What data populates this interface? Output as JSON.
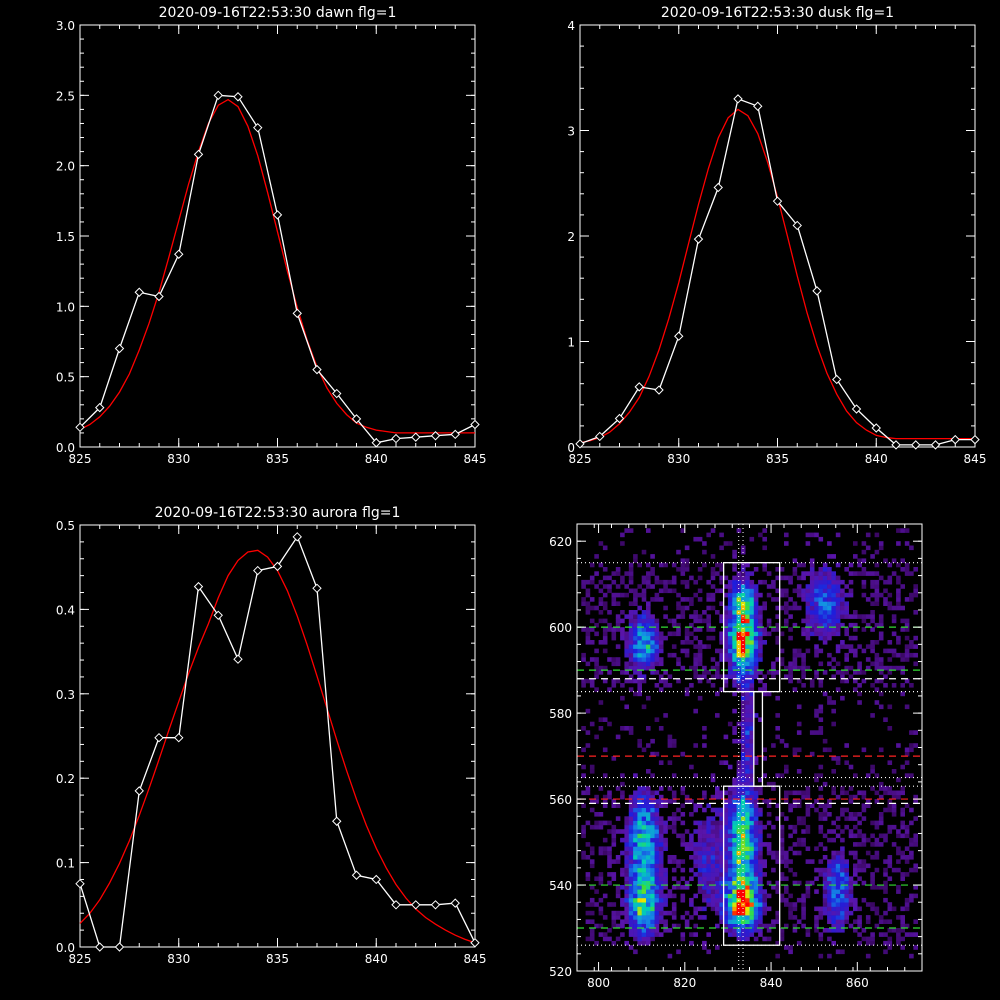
{
  "chart_data": [
    {
      "type": "line",
      "title": "2020-09-16T22:53:30 dawn flg=1",
      "xlim": [
        825,
        845
      ],
      "ylim": [
        0,
        3
      ],
      "xticks": [
        825,
        830,
        835,
        840,
        845
      ],
      "xtick_labels": [
        "825",
        "830",
        "835",
        "840",
        "845"
      ],
      "yticks": [
        0,
        0.5,
        1,
        1.5,
        2,
        2.5,
        3
      ],
      "ytick_labels": [
        "0.0",
        "0.5",
        "1.0",
        "1.5",
        "2.0",
        "2.5",
        "3.0"
      ],
      "series": [
        {
          "x": [
            825,
            826,
            827,
            828,
            829,
            830,
            831,
            832,
            833,
            834,
            835,
            836,
            837,
            838,
            839,
            840,
            841,
            842,
            843,
            844,
            845
          ],
          "y": [
            0.14,
            0.28,
            0.7,
            1.1,
            1.07,
            1.37,
            2.08,
            2.5,
            2.49,
            2.27,
            1.65,
            0.95,
            0.55,
            0.38,
            0.2,
            0.03,
            0.06,
            0.07,
            0.08,
            0.09,
            0.16
          ],
          "color": "#ffffff",
          "markers": "diamond"
        },
        {
          "x": [
            825,
            825.5,
            826,
            826.5,
            827,
            827.5,
            828,
            828.5,
            829,
            829.5,
            830,
            830.5,
            831,
            831.5,
            832,
            832.5,
            833,
            833.5,
            834,
            834.5,
            835,
            835.5,
            836,
            836.5,
            837,
            837.5,
            838,
            838.5,
            839,
            839.5,
            840,
            840.5,
            841,
            841.5,
            842,
            842.5,
            843,
            843.5,
            844,
            844.5,
            845
          ],
          "y": [
            0.125,
            0.16,
            0.215,
            0.29,
            0.39,
            0.52,
            0.69,
            0.88,
            1.1,
            1.35,
            1.61,
            1.87,
            2.1,
            2.3,
            2.43,
            2.47,
            2.42,
            2.28,
            2.07,
            1.81,
            1.53,
            1.25,
            0.99,
            0.76,
            0.57,
            0.42,
            0.31,
            0.23,
            0.17,
            0.14,
            0.12,
            0.11,
            0.1,
            0.1,
            0.1,
            0.1,
            0.1,
            0.1,
            0.1,
            0.1,
            0.1
          ],
          "color": "#ff0000",
          "markers": "none"
        }
      ]
    },
    {
      "type": "line",
      "title": "2020-09-16T22:53:30 dusk flg=1",
      "xlim": [
        825,
        845
      ],
      "ylim": [
        0,
        4
      ],
      "xticks": [
        825,
        830,
        835,
        840,
        845
      ],
      "xtick_labels": [
        "825",
        "830",
        "835",
        "840",
        "845"
      ],
      "yticks": [
        0,
        1,
        2,
        3,
        4
      ],
      "ytick_labels": [
        "0",
        "1",
        "2",
        "3",
        "4"
      ],
      "series": [
        {
          "x": [
            825,
            826,
            827,
            828,
            829,
            830,
            831,
            832,
            833,
            834,
            835,
            836,
            837,
            838,
            839,
            840,
            841,
            842,
            843,
            844,
            845
          ],
          "y": [
            0.03,
            0.1,
            0.27,
            0.57,
            0.54,
            1.05,
            1.97,
            2.46,
            3.3,
            3.23,
            2.33,
            2.1,
            1.48,
            0.64,
            0.36,
            0.18,
            0.02,
            0.02,
            0.02,
            0.07,
            0.07
          ],
          "color": "#ffffff",
          "markers": "diamond"
        },
        {
          "x": [
            825,
            825.5,
            826,
            826.5,
            827,
            827.5,
            828,
            828.5,
            829,
            829.5,
            830,
            830.5,
            831,
            831.5,
            832,
            832.5,
            833,
            833.5,
            834,
            834.5,
            835,
            835.5,
            836,
            836.5,
            837,
            837.5,
            838,
            838.5,
            839,
            839.5,
            840,
            840.5,
            841,
            841.5,
            842,
            842.5,
            843,
            843.5,
            844,
            844.5,
            845
          ],
          "y": [
            0.04,
            0.06,
            0.09,
            0.14,
            0.22,
            0.33,
            0.47,
            0.67,
            0.92,
            1.22,
            1.56,
            1.93,
            2.3,
            2.64,
            2.93,
            3.12,
            3.2,
            3.14,
            2.97,
            2.7,
            2.37,
            2.0,
            1.62,
            1.27,
            0.96,
            0.7,
            0.5,
            0.34,
            0.23,
            0.16,
            0.11,
            0.09,
            0.08,
            0.08,
            0.08,
            0.08,
            0.08,
            0.08,
            0.08,
            0.08,
            0.08
          ],
          "color": "#ff0000",
          "markers": "none"
        }
      ]
    },
    {
      "type": "line",
      "title": "2020-09-16T22:53:30 aurora flg=1",
      "xlim": [
        825,
        845
      ],
      "ylim": [
        0,
        0.5
      ],
      "xticks": [
        825,
        830,
        835,
        840,
        845
      ],
      "xtick_labels": [
        "825",
        "830",
        "835",
        "840",
        "845"
      ],
      "yticks": [
        0,
        0.1,
        0.2,
        0.3,
        0.4,
        0.5
      ],
      "ytick_labels": [
        "0.0",
        "0.1",
        "0.2",
        "0.3",
        "0.4",
        "0.5"
      ],
      "series": [
        {
          "x": [
            825,
            826,
            827,
            828,
            829,
            830,
            831,
            832,
            833,
            834,
            835,
            836,
            837,
            838,
            839,
            840,
            841,
            842,
            843,
            844,
            845
          ],
          "y": [
            0.075,
            0,
            0,
            0.185,
            0.248,
            0.248,
            0.427,
            0.393,
            0.341,
            0.446,
            0.451,
            0.486,
            0.425,
            0.149,
            0.085,
            0.08,
            0.05,
            0.05,
            0.05,
            0.052,
            0.005
          ],
          "color": "#ffffff",
          "markers": "diamond"
        },
        {
          "x": [
            825,
            825.5,
            826,
            826.5,
            827,
            827.5,
            828,
            828.5,
            829,
            829.5,
            830,
            830.5,
            831,
            831.5,
            832,
            832.5,
            833,
            833.5,
            834,
            834.5,
            835,
            835.5,
            836,
            836.5,
            837,
            837.5,
            838,
            838.5,
            839,
            839.5,
            840,
            840.5,
            841,
            841.5,
            842,
            842.5,
            843,
            843.5,
            844,
            844.5,
            845
          ],
          "y": [
            0.028,
            0.04,
            0.056,
            0.076,
            0.099,
            0.126,
            0.156,
            0.188,
            0.222,
            0.257,
            0.291,
            0.324,
            0.355,
            0.383,
            0.414,
            0.44,
            0.458,
            0.468,
            0.47,
            0.462,
            0.446,
            0.422,
            0.392,
            0.358,
            0.321,
            0.283,
            0.245,
            0.209,
            0.175,
            0.144,
            0.117,
            0.094,
            0.074,
            0.058,
            0.045,
            0.035,
            0.027,
            0.02,
            0.014,
            0.009,
            0.005
          ],
          "color": "#ff0000",
          "markers": "none"
        }
      ]
    },
    {
      "type": "heatmap",
      "title": "",
      "xlim": [
        795,
        875
      ],
      "ylim": [
        520,
        624
      ],
      "xticks": [
        800,
        820,
        840,
        860
      ],
      "xtick_labels": [
        "800",
        "820",
        "840",
        "860"
      ],
      "yticks": [
        520,
        540,
        560,
        580,
        600,
        620
      ],
      "ytick_labels": [
        "520",
        "540",
        "560",
        "580",
        "600",
        "620"
      ],
      "boxes": [
        {
          "x0": 829,
          "x1": 842,
          "y0": 585,
          "y1": 615
        },
        {
          "x0": 829,
          "x1": 842,
          "y0": 526,
          "y1": 563
        },
        {
          "x0": 836,
          "x1": 838,
          "y0": 563,
          "y1": 585
        }
      ],
      "hlines": [
        {
          "y": 615,
          "color": "#ffffff",
          "style": "dotted"
        },
        {
          "y": 600,
          "color": "#33dd33",
          "style": "dashed"
        },
        {
          "y": 590,
          "color": "#33dd33",
          "style": "dashed"
        },
        {
          "y": 588,
          "color": "#ffffff",
          "style": "dashed"
        },
        {
          "y": 585,
          "color": "#ffffff",
          "style": "dotted"
        },
        {
          "y": 570,
          "color": "#ff2222",
          "style": "dashed"
        },
        {
          "y": 565,
          "color": "#ffffff",
          "style": "dotted"
        },
        {
          "y": 563,
          "color": "#ffffff",
          "style": "dotted"
        },
        {
          "y": 560,
          "color": "#ff2222",
          "style": "dashed"
        },
        {
          "y": 559,
          "color": "#ffffff",
          "style": "dashed"
        },
        {
          "y": 540,
          "color": "#33dd33",
          "style": "dashed"
        },
        {
          "y": 530,
          "color": "#33dd33",
          "style": "dashed"
        },
        {
          "y": 526,
          "color": "#ffffff",
          "style": "dotted"
        }
      ],
      "vlines": [
        {
          "x": 832.5,
          "color": "#ffffff",
          "style": "dotted"
        },
        {
          "x": 833.5,
          "color": "#ffffff",
          "style": "dotted"
        }
      ],
      "hotspots": [
        {
          "x": 810,
          "y": 596,
          "sx": 2.5,
          "sy": 4,
          "a": 0.55
        },
        {
          "x": 833,
          "y": 596,
          "sx": 2.2,
          "sy": 5,
          "a": 0.95
        },
        {
          "x": 833,
          "y": 605,
          "sx": 2.0,
          "sy": 4,
          "a": 0.55
        },
        {
          "x": 852,
          "y": 605,
          "sx": 3,
          "sy": 6,
          "a": 0.35
        },
        {
          "x": 834,
          "y": 575,
          "sx": 1.5,
          "sy": 8,
          "a": 0.25
        },
        {
          "x": 810,
          "y": 550,
          "sx": 2.5,
          "sy": 7,
          "a": 0.6
        },
        {
          "x": 810,
          "y": 535,
          "sx": 2.5,
          "sy": 5,
          "a": 0.65
        },
        {
          "x": 833,
          "y": 550,
          "sx": 2.2,
          "sy": 8,
          "a": 0.75
        },
        {
          "x": 833,
          "y": 535,
          "sx": 2.5,
          "sy": 4,
          "a": 1.0
        },
        {
          "x": 855,
          "y": 538,
          "sx": 2,
          "sy": 6,
          "a": 0.45
        },
        {
          "x": 825,
          "y": 545,
          "sx": 3,
          "sy": 10,
          "a": 0.2
        }
      ]
    }
  ]
}
